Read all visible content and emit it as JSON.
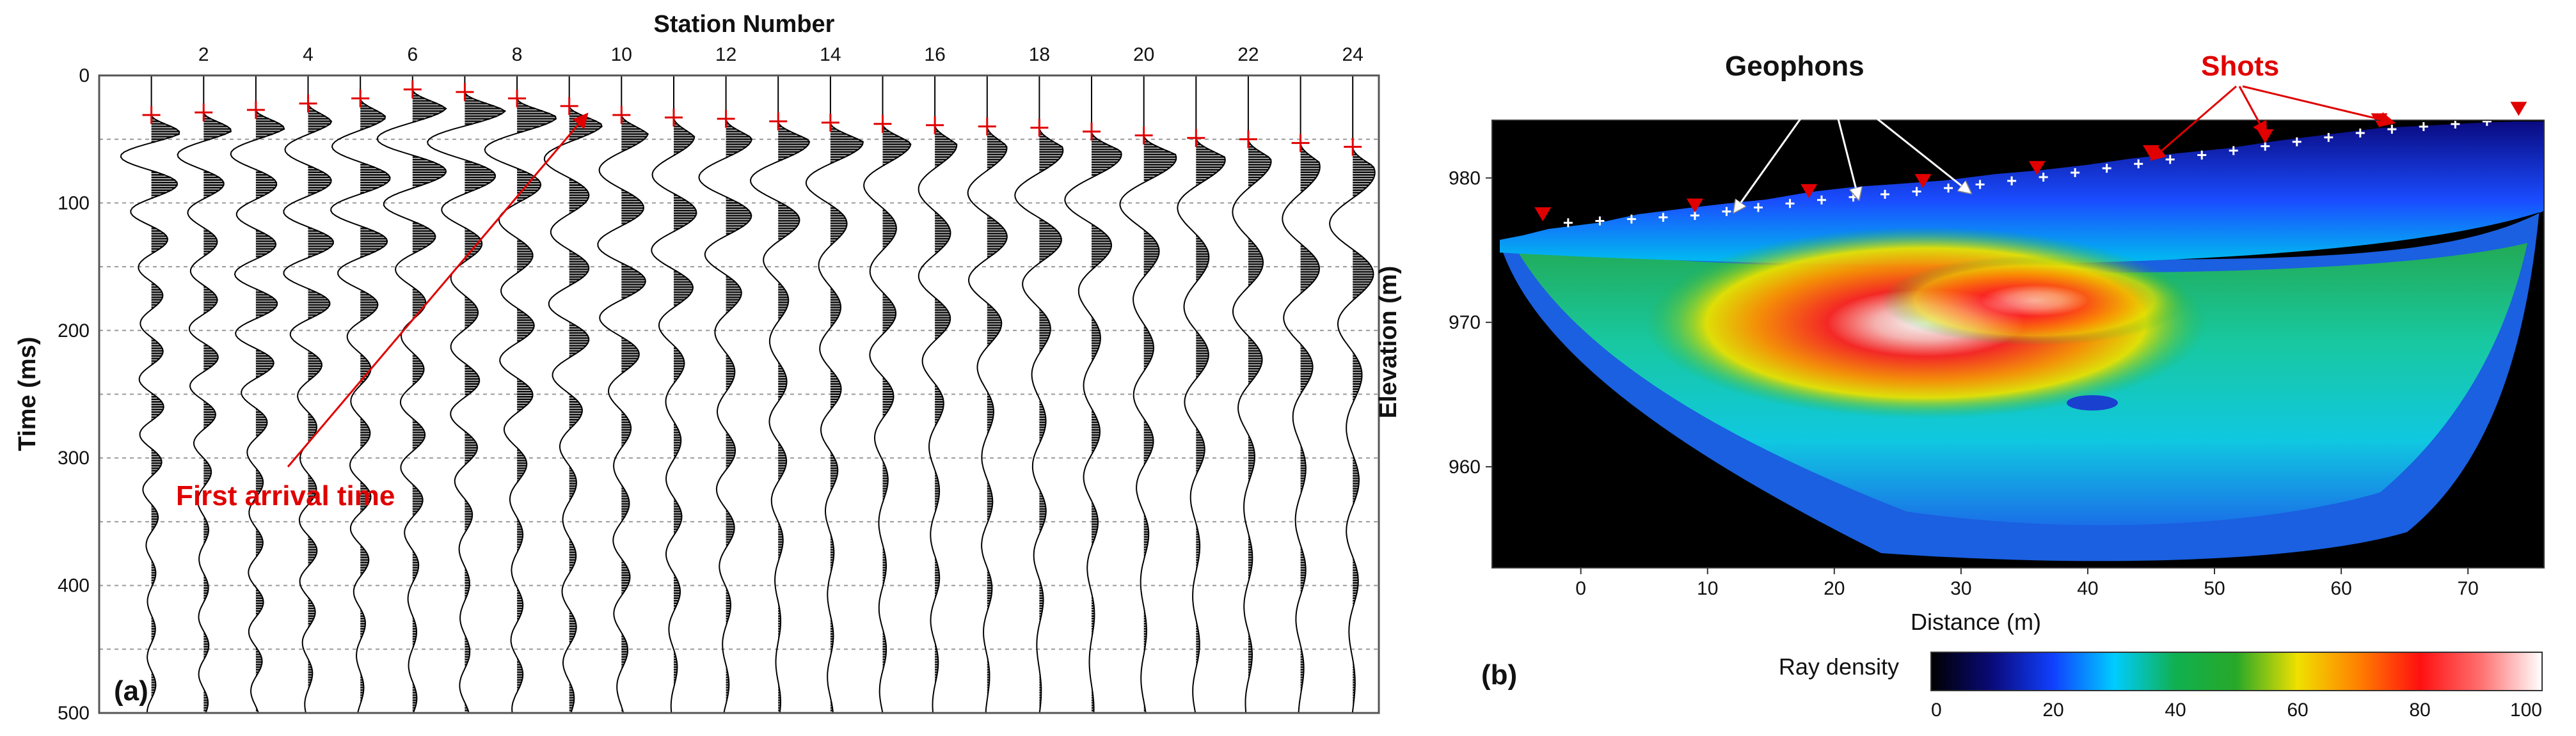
{
  "colors": {
    "pick": "#e00000",
    "trace": "#000000",
    "grid": "#9a9a9a",
    "annotation_red": "#e00000",
    "background_b": "#000000",
    "geophon_marker": "#ffffff"
  },
  "chart_data": [
    {
      "id": "a",
      "type": "line",
      "title": "Station Number",
      "ylabel": "Time (ms)",
      "xlabel": "",
      "panel_label": "(a)",
      "xlim": [
        0,
        24.5
      ],
      "ylim": [
        500,
        0
      ],
      "x_ticks": [
        2,
        4,
        6,
        8,
        10,
        12,
        14,
        16,
        18,
        20,
        22,
        24
      ],
      "y_ticks": [
        0,
        100,
        200,
        300,
        400,
        500
      ],
      "stations": [
        1,
        2,
        3,
        4,
        5,
        6,
        7,
        8,
        9,
        10,
        11,
        12,
        13,
        14,
        15,
        16,
        17,
        18,
        19,
        20,
        21,
        22,
        23,
        24
      ],
      "first_arrival_ms": [
        31,
        29,
        27,
        22,
        18,
        11,
        13,
        18,
        24,
        31,
        33,
        34,
        36,
        37,
        38,
        39,
        40,
        41,
        44,
        47,
        49,
        50,
        53,
        56
      ],
      "annotation": "First arrival time",
      "grid": "horizontal dashed"
    },
    {
      "id": "b",
      "type": "heatmap",
      "title": "",
      "xlabel": "Distance (m)",
      "ylabel": "Elevation (m)",
      "panel_label": "(b)",
      "xlim": [
        -7,
        76
      ],
      "ylim": [
        953,
        984
      ],
      "x_ticks": [
        0,
        10,
        20,
        30,
        40,
        50,
        60,
        70
      ],
      "y_ticks": [
        960,
        970,
        980
      ],
      "colorbar_label": "Ray density",
      "colorbar_ticks": [
        0,
        20,
        40,
        60,
        80,
        100
      ],
      "annotations": [
        "Geophons",
        "Shots"
      ],
      "shots": [
        {
          "x": -3,
          "z": 977.0
        },
        {
          "x": 9,
          "z": 977.6
        },
        {
          "x": 18,
          "z": 978.6
        },
        {
          "x": 27,
          "z": 979.3
        },
        {
          "x": 36,
          "z": 980.2
        },
        {
          "x": 45,
          "z": 981.3
        },
        {
          "x": 54,
          "z": 982.4
        },
        {
          "x": 63,
          "z": 983.5
        },
        {
          "x": 74,
          "z": 984.3
        }
      ],
      "geophones_x": [
        -1,
        1.5,
        4,
        6.5,
        9,
        11.5,
        14,
        16.5,
        19,
        21.5,
        24,
        26.5,
        29,
        31.5,
        34,
        36.5,
        39,
        41.5,
        44,
        46.5,
        49,
        51.5,
        54,
        56.5,
        59,
        61.5,
        64,
        66.5,
        69,
        71.5
      ]
    }
  ]
}
